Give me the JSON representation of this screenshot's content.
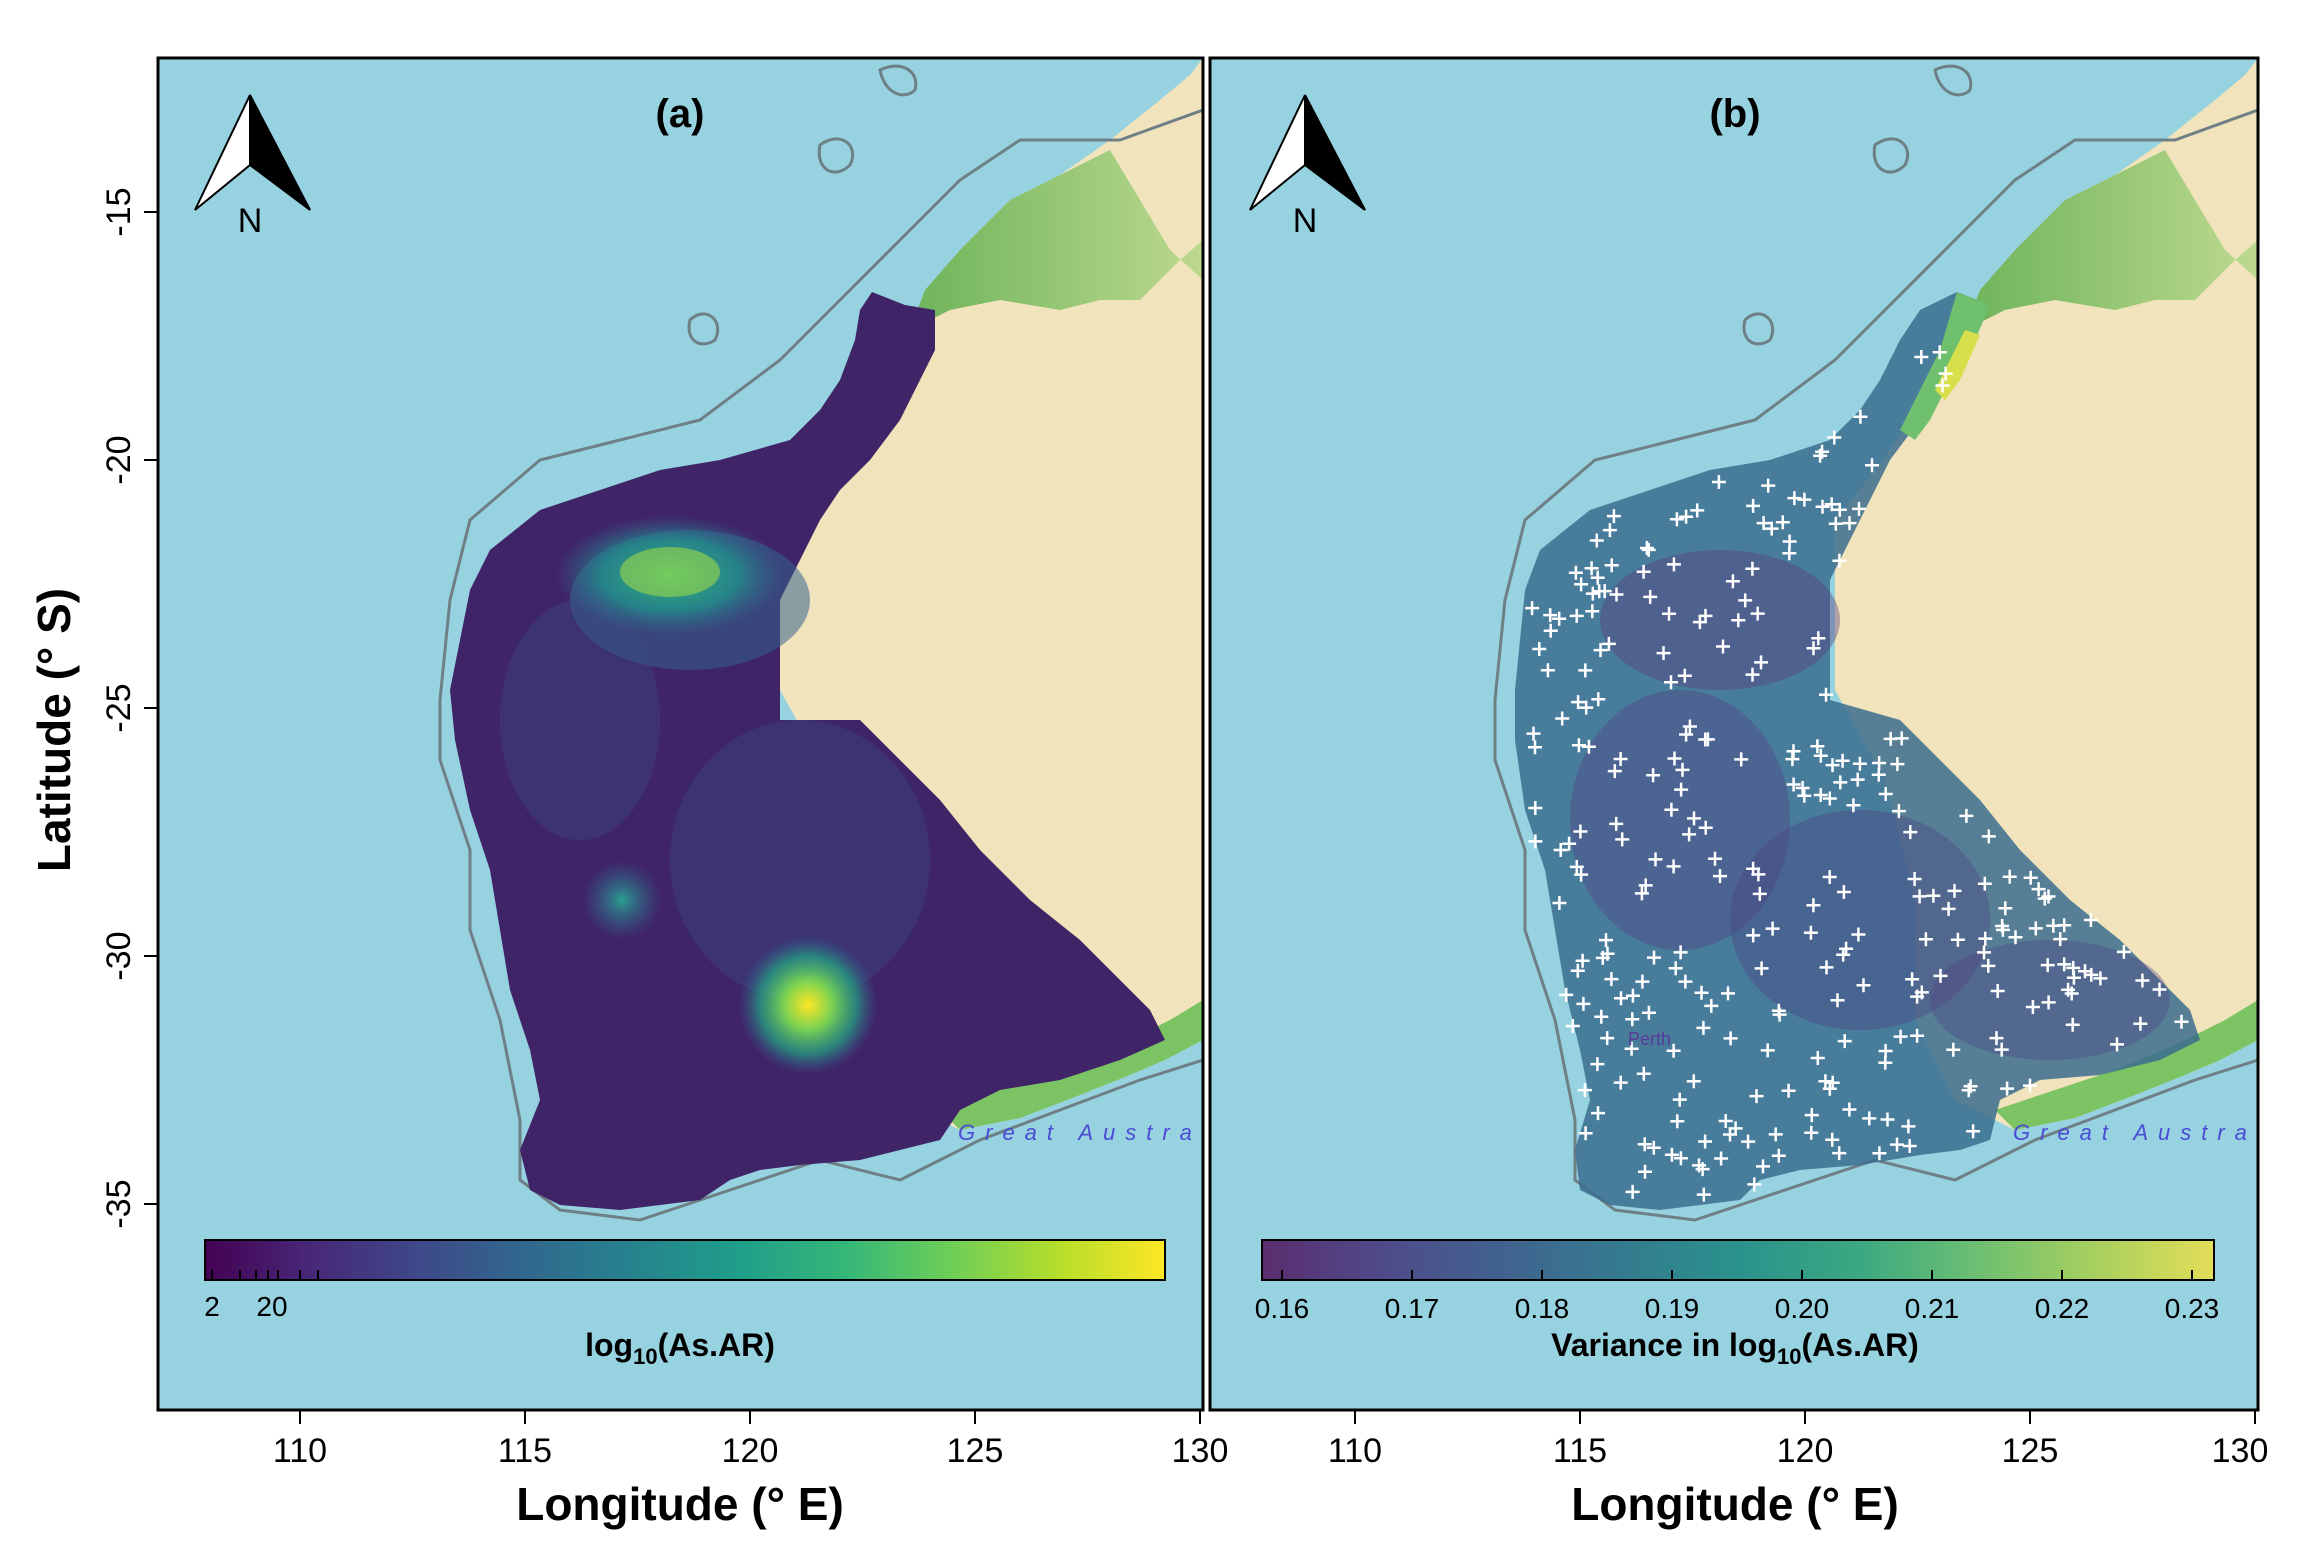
{
  "y_axis_label": "Latitude (° S)",
  "y_ticks": [
    "-15",
    "-20",
    "-25",
    "-30",
    "-35"
  ],
  "panels": [
    {
      "title": "(a)",
      "x_axis_label": "Longitude (° E)",
      "x_ticks": [
        "110",
        "115",
        "120",
        "125",
        "130"
      ],
      "north_label": "N",
      "sea_label": "Great Austra",
      "colorbar": {
        "title_main": "log",
        "title_sub": "10",
        "title_tail": "(As.AR)",
        "labels": [
          "2",
          "20"
        ],
        "palette": [
          "#440154",
          "#482878",
          "#3e4989",
          "#31688e",
          "#26828e",
          "#1f9e89",
          "#35b779",
          "#6ece58",
          "#b5de2b",
          "#fde725"
        ]
      }
    },
    {
      "title": "(b)",
      "x_axis_label": "Longitude (° E)",
      "x_ticks": [
        "110",
        "115",
        "120",
        "125",
        "130"
      ],
      "north_label": "N",
      "sea_label": "Great Austra",
      "city_label": "Perth",
      "colorbar": {
        "title_main": "Variance in log",
        "title_sub": "10",
        "title_tail": "(As.AR)",
        "labels": [
          "0.16",
          "0.17",
          "0.18",
          "0.19",
          "0.20",
          "0.21",
          "0.22",
          "0.23"
        ],
        "palette": [
          "#5b2d6e",
          "#4f4a8a",
          "#41628f",
          "#357a8f",
          "#2a928c",
          "#3aa882",
          "#6cbf72",
          "#a8d05e",
          "#e2dd58"
        ]
      }
    }
  ],
  "colors": {
    "ocean": "#96d2e0",
    "land": "#f1e4bc",
    "green": "#6dbb5a"
  }
}
